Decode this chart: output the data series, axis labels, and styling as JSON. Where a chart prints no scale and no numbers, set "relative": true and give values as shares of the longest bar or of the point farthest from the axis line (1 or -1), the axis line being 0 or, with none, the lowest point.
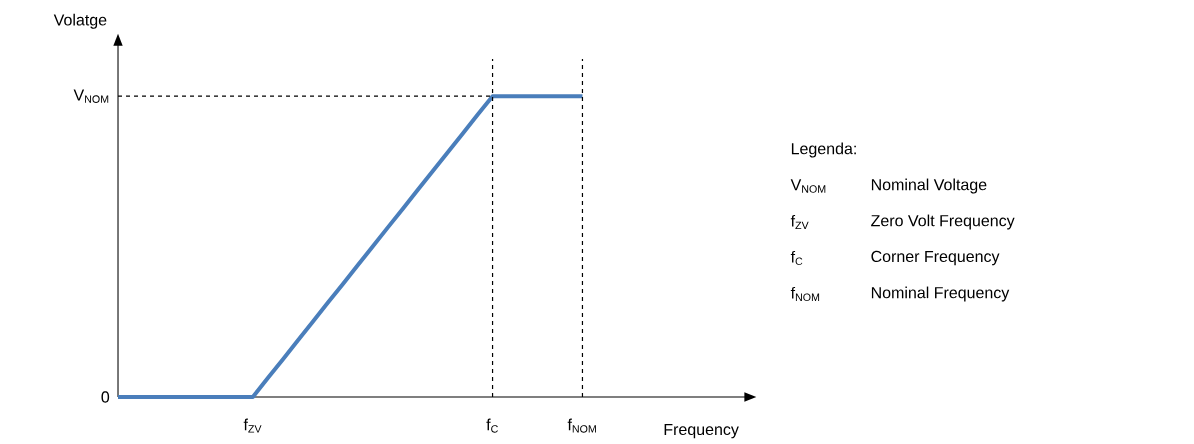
{
  "chart_data": {
    "type": "line",
    "relative": true,
    "xlabel": "Frequency",
    "ylabel": "Volatge",
    "categories": [
      null,
      null,
      null,
      null,
      null,
      null,
      null,
      null,
      null,
      "f$_{ZV}$",
      null,
      null,
      null,
      null,
      null,
      null,
      null,
      null,
      null,
      null,
      null,
      null,
      null,
      null,
      null,
      "f$_{C}$",
      null,
      null,
      null,
      null,
      null,
      "f$_{NOM}$"
    ],
    "series": [
      {
        "color": "#4a7ebb",
        "values": [
          0,
          0,
          0,
          0,
          0,
          0,
          0,
          0,
          0,
          0,
          0.063,
          0.125,
          0.188,
          0.25,
          0.313,
          0.375,
          0.438,
          0.5,
          0.563,
          0.625,
          0.688,
          0.75,
          0.813,
          0.875,
          0.938,
          1,
          1,
          1,
          1,
          1,
          1,
          1
        ]
      },
      {
        "color": "#000000",
        "line_style": "dashed",
        "values": [
          1,
          1,
          1,
          1,
          1,
          1,
          1,
          1,
          1,
          1,
          1,
          1,
          1,
          1,
          1,
          1,
          1,
          1,
          1,
          1,
          1,
          1,
          1,
          1,
          1,
          1,
          null,
          null,
          null,
          null,
          null,
          null
        ]
      }
    ],
    "ref_lines": [
      {
        "axis": "x",
        "value": "f$_{C}$",
        "color": "#000000",
        "line_style": "dashed"
      },
      {
        "axis": "x",
        "value": "f$_{NOM}$",
        "color": "#000000",
        "line_style": "dashed"
      }
    ],
    "annotations": [
      "0",
      "V$_{NOM}$",
      "Legenda:",
      "V$_{NOM}$",
      "Nominal Voltage",
      "f$_{ZV}$",
      "Zero Volt Frequency",
      "f$_{C}$",
      "Corner Frequency",
      "f$_{NOM}$",
      "Nominal Frequency"
    ]
  }
}
